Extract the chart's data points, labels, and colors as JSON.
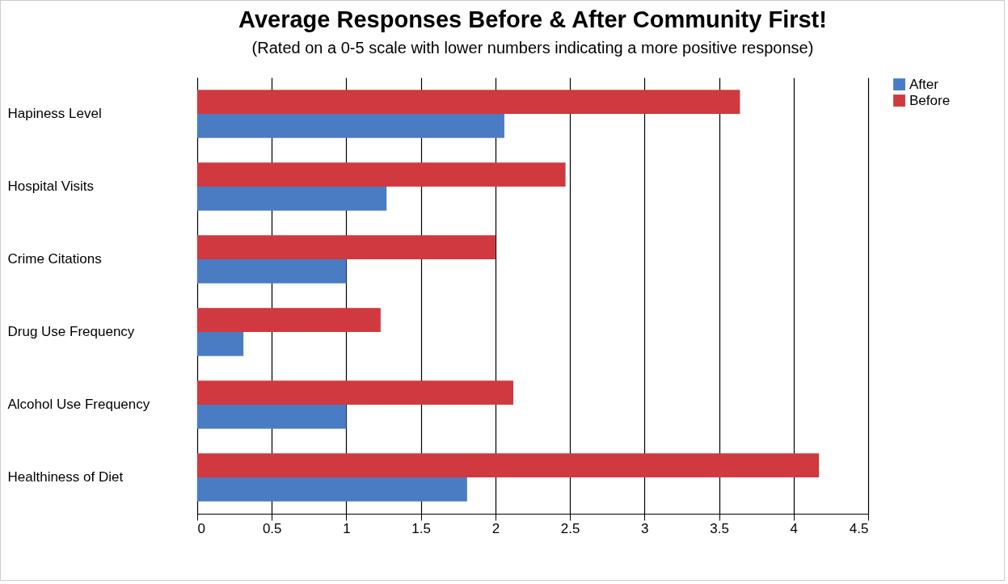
{
  "chart_data": {
    "type": "bar",
    "orientation": "horizontal",
    "title": "Average Responses  Before & After Community First!",
    "subtitle": "(Rated on a 0-5 scale with lower numbers indicating a more positive response)",
    "categories": [
      "Hapiness Level",
      "Hospital Visits",
      "Crime Citations",
      "Drug Use Frequency",
      "Alcohol Use Frequency",
      "Healthiness of Diet"
    ],
    "series": [
      {
        "name": "After",
        "color": "#4a7cc4",
        "values": [
          2.06,
          1.27,
          1.0,
          0.31,
          1.0,
          1.81
        ]
      },
      {
        "name": "Before",
        "color": "#d0393f",
        "values": [
          3.64,
          2.47,
          2.0,
          1.23,
          2.12,
          4.17
        ]
      }
    ],
    "xlim": [
      0,
      4.5
    ],
    "xticks": [
      0,
      0.5,
      1,
      1.5,
      2,
      2.5,
      3,
      3.5,
      4,
      4.5
    ],
    "grid": "x",
    "legend": "right"
  }
}
